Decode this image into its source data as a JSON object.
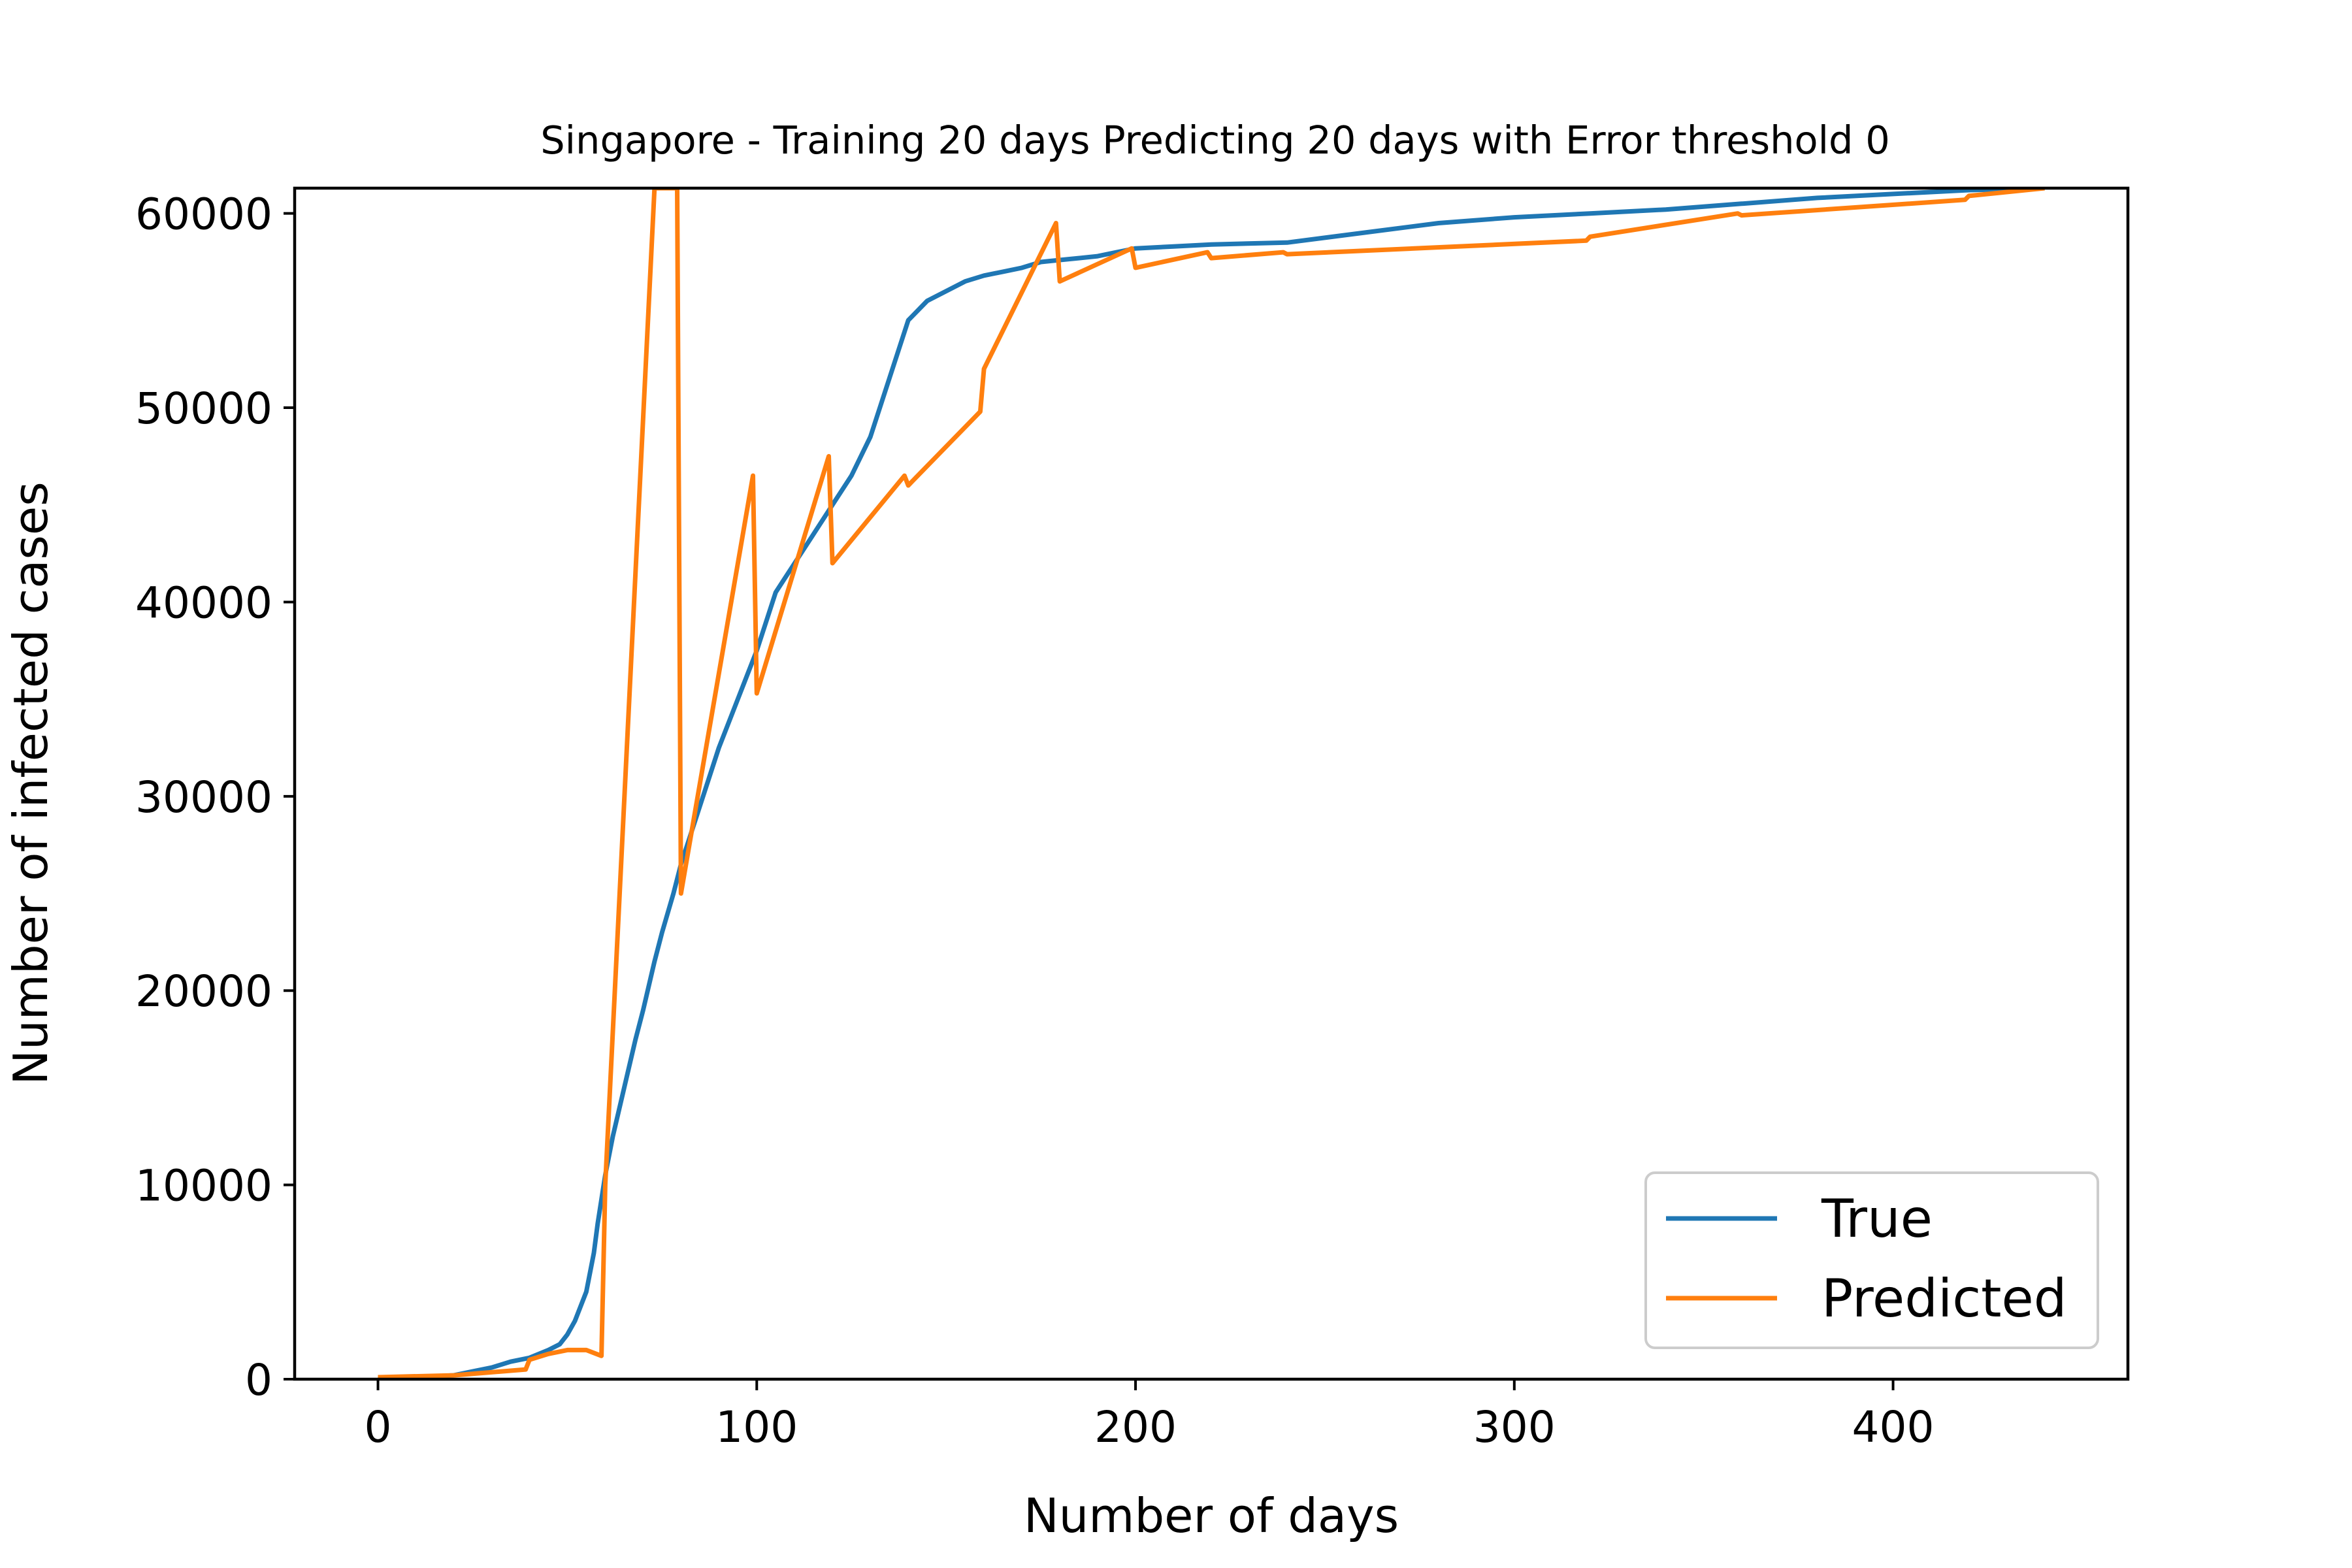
{
  "chart_data": {
    "type": "line",
    "title": "Singapore - Training 20 days Predicting 20 days with Error threshold 0",
    "xlabel": "Number of days",
    "ylabel": "Number of infected cases",
    "xlim": [
      -22,
      462
    ],
    "ylim": [
      0,
      61300
    ],
    "xticks": [
      0,
      100,
      200,
      300,
      400
    ],
    "yticks": [
      0,
      10000,
      20000,
      30000,
      40000,
      50000,
      60000
    ],
    "xtick_labels": [
      "0",
      "100",
      "200",
      "300",
      "400"
    ],
    "ytick_labels": [
      "0",
      "10000",
      "20000",
      "30000",
      "40000",
      "50000",
      "60000"
    ],
    "grid": false,
    "legend_position": "lower-right",
    "legend_labels": [
      "True",
      "Predicted"
    ],
    "series": [
      {
        "name": "True",
        "color": "#1f77b4",
        "x": [
          0,
          10,
          20,
          25,
          30,
          35,
          40,
          45,
          48,
          50,
          52,
          55,
          57,
          58,
          60,
          62,
          65,
          68,
          70,
          73,
          75,
          78,
          80,
          85,
          90,
          95,
          100,
          105,
          110,
          115,
          120,
          125,
          130,
          135,
          140,
          145,
          150,
          155,
          160,
          165,
          170,
          175,
          180,
          185,
          190,
          195,
          200,
          210,
          220,
          240,
          260,
          280,
          300,
          320,
          340,
          360,
          380,
          400,
          420,
          440
        ],
        "y": [
          0,
          100,
          200,
          400,
          600,
          900,
          1100,
          1500,
          1800,
          2300,
          3000,
          4500,
          6500,
          8000,
          10500,
          12500,
          15000,
          17500,
          19000,
          21500,
          23000,
          25000,
          26500,
          29500,
          32500,
          35000,
          37500,
          40500,
          42000,
          43500,
          45000,
          46500,
          48500,
          51500,
          54500,
          55500,
          56000,
          56500,
          56800,
          57000,
          57200,
          57500,
          57600,
          57700,
          57800,
          58000,
          58200,
          58300,
          58400,
          58500,
          59000,
          59500,
          59800,
          60000,
          60200,
          60500,
          60800,
          61000,
          61200,
          61300
        ]
      },
      {
        "name": "Predicted",
        "color": "#ff7f0e",
        "x": [
          0,
          20,
          39,
          40,
          45,
          50,
          55,
          59,
          60,
          73,
          74,
          79,
          80,
          99,
          100,
          119,
          120,
          139,
          140,
          159,
          160,
          179,
          180,
          199,
          200,
          219,
          220,
          239,
          240,
          319,
          320,
          359,
          360,
          419,
          420,
          440
        ],
        "y": [
          100,
          200,
          500,
          1000,
          1300,
          1500,
          1500,
          1200,
          10000,
          61300,
          61300,
          61300,
          25000,
          46500,
          35300,
          47500,
          42000,
          46500,
          46000,
          49800,
          52000,
          59500,
          56500,
          58200,
          57200,
          58000,
          57700,
          58000,
          57900,
          58600,
          58800,
          60000,
          59900,
          60700,
          60900,
          61300
        ]
      }
    ]
  }
}
